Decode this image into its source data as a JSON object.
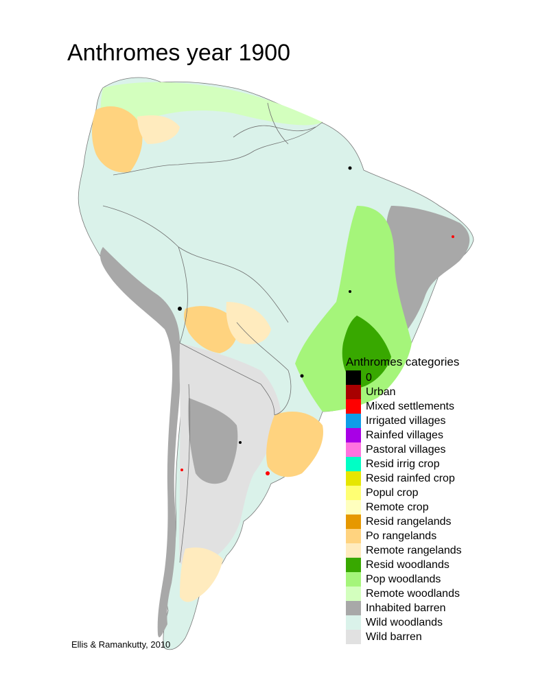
{
  "title": "Anthromes year 1900",
  "credit": "Ellis & Ramankutty, 2010",
  "legend": {
    "title": "Anthromes categories",
    "items": [
      {
        "label": "0",
        "color": "#000000"
      },
      {
        "label": "Urban",
        "color": "#a80000"
      },
      {
        "label": "Mixed settlements",
        "color": "#ff0000"
      },
      {
        "label": "Irrigated villages",
        "color": "#0e9de8"
      },
      {
        "label": "Rainfed villages",
        "color": "#a800e6"
      },
      {
        "label": "Pastoral villages",
        "color": "#ff73df"
      },
      {
        "label": "Resid irrig crop",
        "color": "#00ffc5"
      },
      {
        "label": "Resid rainfed crop",
        "color": "#e6e600"
      },
      {
        "label": "Popul crop",
        "color": "#ffff73"
      },
      {
        "label": "Remote crop",
        "color": "#ffffbe"
      },
      {
        "label": "Resid rangelands",
        "color": "#e69800"
      },
      {
        "label": "Po rangelands",
        "color": "#ffd37f"
      },
      {
        "label": "Remote rangelands",
        "color": "#ffebbe"
      },
      {
        "label": "Resid woodlands",
        "color": "#38a800"
      },
      {
        "label": "Pop woodlands",
        "color": "#a5f57a"
      },
      {
        "label": "Remote woodlands",
        "color": "#d3ffbe"
      },
      {
        "label": "Inhabited barren",
        "color": "#a8a8a8"
      },
      {
        "label": "Wild woodlands",
        "color": "#daf2ea"
      },
      {
        "label": "Wild barren",
        "color": "#e1e1e1"
      }
    ]
  }
}
